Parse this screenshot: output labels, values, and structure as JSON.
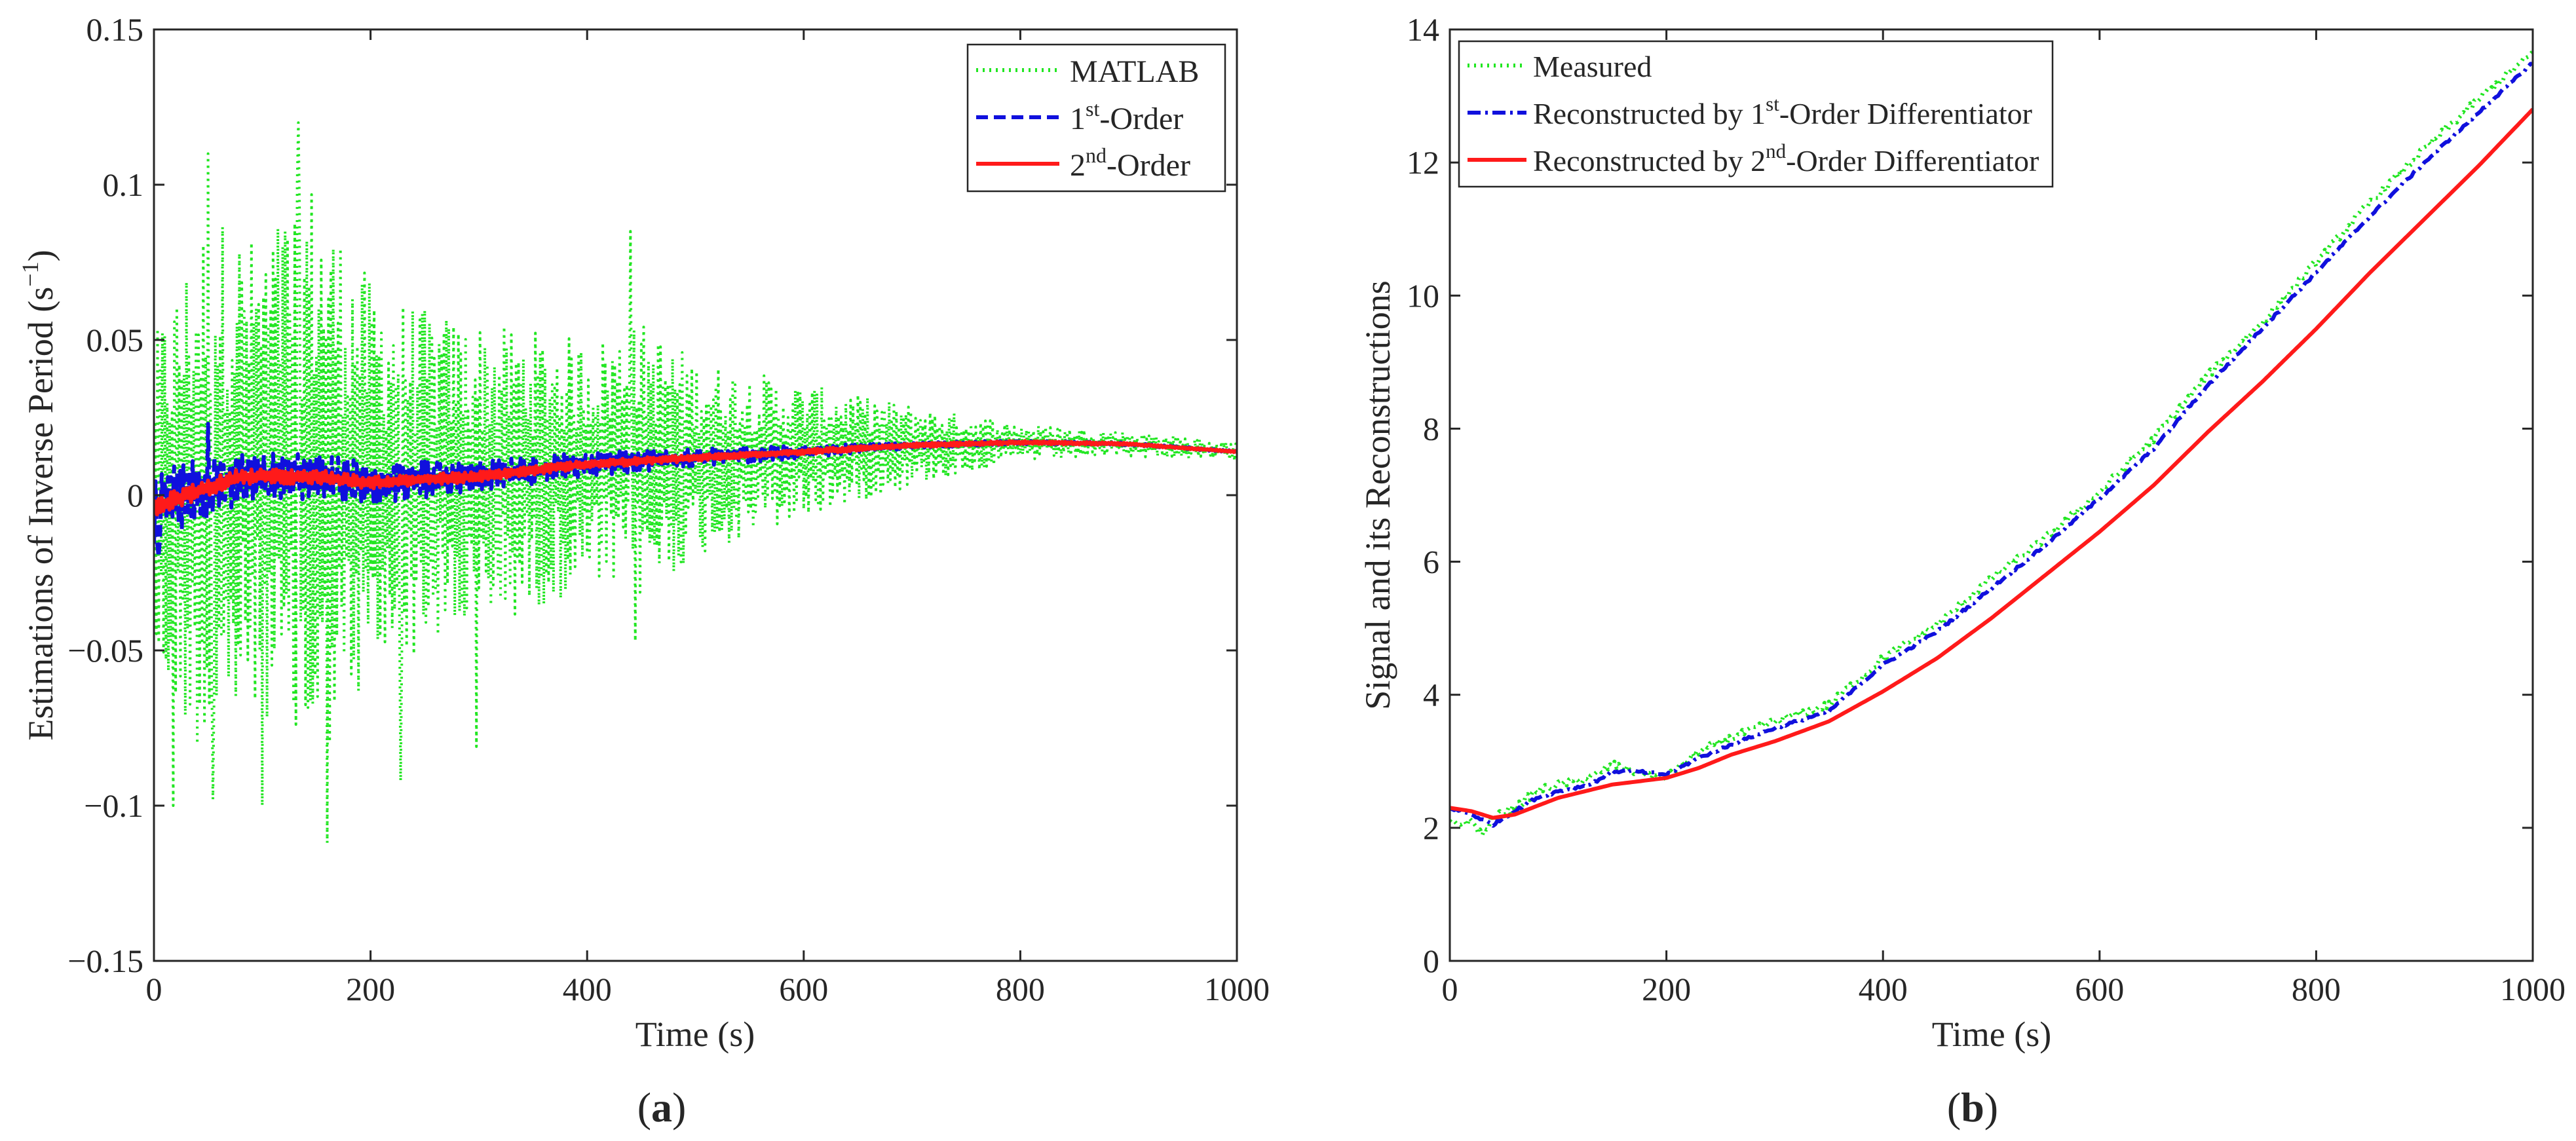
{
  "chart_data": [
    {
      "type": "line",
      "panel_label": "a",
      "xlabel": "Time (s)",
      "ylabel": "Estimations of Inverse Period (s",
      "ylabel_sup": "−1",
      "ylabel_tail": ")",
      "xlim": [
        0,
        1000
      ],
      "ylim": [
        -0.15,
        0.15
      ],
      "xticks": [
        0,
        200,
        400,
        600,
        800,
        1000
      ],
      "yticks": [
        -0.15,
        -0.1,
        -0.05,
        0,
        0.05,
        0.1,
        0.15
      ],
      "ytick_labels": [
        "−0.15",
        "−0.1",
        "−0.05",
        "0",
        "0.05",
        "0.1",
        "0.15"
      ],
      "grid": false,
      "legend_position": "top-right",
      "series": [
        {
          "name": "MATLAB",
          "name_sup": "",
          "name_tail": "",
          "color": "#22e622",
          "style": "dotted",
          "amp_points": [
            [
              0,
              0.055
            ],
            [
              50,
              0.09
            ],
            [
              100,
              0.075
            ],
            [
              140,
              0.1
            ],
            [
              200,
              0.065
            ],
            [
              250,
              0.055
            ],
            [
              300,
              0.05
            ],
            [
              400,
              0.04
            ],
            [
              450,
              0.045
            ],
            [
              500,
              0.032
            ],
            [
              600,
              0.022
            ],
            [
              700,
              0.013
            ],
            [
              800,
              0.006
            ],
            [
              900,
              0.004
            ],
            [
              1000,
              0.003
            ]
          ],
          "peaks": [
            [
              18,
              -0.1
            ],
            [
              50,
              0.11
            ],
            [
              55,
              -0.098
            ],
            [
              100,
              -0.1
            ],
            [
              133,
              0.12
            ],
            [
              160,
              -0.112
            ],
            [
              228,
              -0.092
            ],
            [
              298,
              -0.081
            ],
            [
              440,
              0.085
            ],
            [
              445,
              -0.047
            ]
          ]
        },
        {
          "name": "1",
          "name_sup": "st",
          "name_tail": "-Order",
          "color": "#1010dd",
          "style": "dashed",
          "amp_points": [
            [
              0,
              0.012
            ],
            [
              100,
              0.008
            ],
            [
              200,
              0.007
            ],
            [
              300,
              0.005
            ],
            [
              400,
              0.004
            ],
            [
              500,
              0.003
            ],
            [
              600,
              0.002
            ],
            [
              700,
              0.001
            ],
            [
              800,
              0.0006
            ],
            [
              1000,
              0.0003
            ]
          ],
          "peaks": [
            [
              5,
              -0.02
            ],
            [
              50,
              0.023
            ]
          ]
        },
        {
          "name": "2",
          "name_sup": "nd",
          "name_tail": "-Order",
          "color": "#ff1a1a",
          "style": "solid",
          "amp_points": [
            [
              0,
              0.003
            ],
            [
              200,
              0.002
            ],
            [
              500,
              0.001
            ],
            [
              1000,
              0.0002
            ]
          ],
          "peaks": []
        }
      ],
      "trend": [
        [
          0,
          -0.004
        ],
        [
          30,
          0.0
        ],
        [
          80,
          0.006
        ],
        [
          150,
          0.006
        ],
        [
          200,
          0.004
        ],
        [
          300,
          0.006
        ],
        [
          400,
          0.01
        ],
        [
          500,
          0.012
        ],
        [
          600,
          0.014
        ],
        [
          700,
          0.016
        ],
        [
          800,
          0.017
        ],
        [
          900,
          0.0165
        ],
        [
          1000,
          0.014
        ]
      ]
    },
    {
      "type": "line",
      "panel_label": "b",
      "xlabel": "Time (s)",
      "ylabel": "Signal and its Reconstructions",
      "xlim": [
        0,
        1000
      ],
      "ylim": [
        0,
        14
      ],
      "xticks": [
        0,
        200,
        400,
        600,
        800,
        1000
      ],
      "yticks": [
        0,
        2,
        4,
        6,
        8,
        10,
        12,
        14
      ],
      "ytick_labels": [
        "0",
        "2",
        "4",
        "6",
        "8",
        "10",
        "12",
        "14"
      ],
      "grid": false,
      "legend_position": "top-left",
      "series": [
        {
          "name": "Measured",
          "name_sup": "",
          "name_tail": "",
          "color": "#22e622",
          "style": "dotted",
          "points": [
            [
              0,
              2.05
            ],
            [
              20,
              2.1
            ],
            [
              30,
              1.9
            ],
            [
              40,
              2.15
            ],
            [
              60,
              2.3
            ],
            [
              80,
              2.55
            ],
            [
              100,
              2.65
            ],
            [
              130,
              2.75
            ],
            [
              150,
              2.95
            ],
            [
              170,
              2.85
            ],
            [
              200,
              2.75
            ],
            [
              230,
              3.15
            ],
            [
              260,
              3.35
            ],
            [
              300,
              3.6
            ],
            [
              350,
              3.85
            ],
            [
              400,
              4.55
            ],
            [
              450,
              5.05
            ],
            [
              500,
              5.75
            ],
            [
              550,
              6.35
            ],
            [
              600,
              7.05
            ],
            [
              650,
              7.85
            ],
            [
              700,
              8.8
            ],
            [
              750,
              9.6
            ],
            [
              800,
              10.5
            ],
            [
              850,
              11.4
            ],
            [
              900,
              12.2
            ],
            [
              950,
              12.95
            ],
            [
              1000,
              13.65
            ]
          ],
          "noise": 0.06
        },
        {
          "name": "Reconstructed by 1",
          "name_sup": "st",
          "name_tail": "-Order Differentiator",
          "color": "#1010dd",
          "style": "dashdot",
          "points": [
            [
              0,
              2.3
            ],
            [
              20,
              2.2
            ],
            [
              40,
              2.05
            ],
            [
              60,
              2.25
            ],
            [
              80,
              2.45
            ],
            [
              100,
              2.55
            ],
            [
              130,
              2.65
            ],
            [
              150,
              2.85
            ],
            [
              170,
              2.85
            ],
            [
              200,
              2.8
            ],
            [
              230,
              3.05
            ],
            [
              260,
              3.25
            ],
            [
              300,
              3.5
            ],
            [
              350,
              3.75
            ],
            [
              400,
              4.45
            ],
            [
              450,
              4.95
            ],
            [
              500,
              5.6
            ],
            [
              550,
              6.25
            ],
            [
              600,
              6.95
            ],
            [
              650,
              7.7
            ],
            [
              700,
              8.65
            ],
            [
              750,
              9.5
            ],
            [
              800,
              10.35
            ],
            [
              850,
              11.2
            ],
            [
              900,
              12.0
            ],
            [
              950,
              12.75
            ],
            [
              1000,
              13.5
            ]
          ],
          "noise": 0.02
        },
        {
          "name": "Reconstructed by 2",
          "name_sup": "nd",
          "name_tail": "-Order Differentiator",
          "color": "#ff1a1a",
          "style": "solid",
          "points": [
            [
              0,
              2.3
            ],
            [
              20,
              2.25
            ],
            [
              40,
              2.15
            ],
            [
              60,
              2.2
            ],
            [
              100,
              2.45
            ],
            [
              150,
              2.65
            ],
            [
              200,
              2.75
            ],
            [
              230,
              2.9
            ],
            [
              260,
              3.1
            ],
            [
              300,
              3.3
            ],
            [
              350,
              3.6
            ],
            [
              400,
              4.05
            ],
            [
              450,
              4.55
            ],
            [
              500,
              5.15
            ],
            [
              550,
              5.8
            ],
            [
              600,
              6.45
            ],
            [
              650,
              7.15
            ],
            [
              700,
              7.95
            ],
            [
              750,
              8.7
            ],
            [
              800,
              9.5
            ],
            [
              850,
              10.35
            ],
            [
              900,
              11.15
            ],
            [
              950,
              11.95
            ],
            [
              1000,
              12.8
            ]
          ],
          "noise": 0
        }
      ]
    }
  ]
}
